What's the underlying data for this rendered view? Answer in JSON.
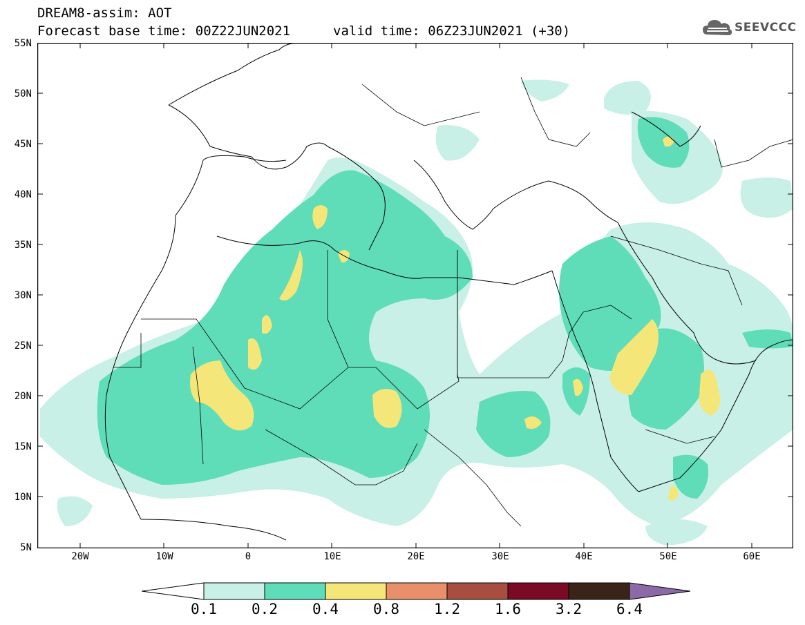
{
  "header": {
    "line1": "DREAM8-assim: AOT",
    "line2": "Forecast base time: 00Z22JUN2021",
    "line2b": "valid time: 06Z23JUN2021 (+30)",
    "logo_text": "SEEVCCC",
    "logo_icon": "cloud-icon"
  },
  "axes": {
    "y_labels": [
      "55N",
      "50N",
      "45N",
      "40N",
      "35N",
      "30N",
      "25N",
      "20N",
      "15N",
      "10N",
      "5N"
    ],
    "x_labels": [
      "20W",
      "10W",
      "0",
      "10E",
      "20E",
      "30E",
      "40E",
      "50E",
      "60E"
    ],
    "lon_range": [
      -25,
      65
    ],
    "lat_range": [
      5,
      55
    ]
  },
  "colorbar": {
    "levels": [
      "0.1",
      "0.2",
      "0.4",
      "0.8",
      "1.2",
      "1.6",
      "3.2",
      "6.4"
    ],
    "colors": [
      "#ffffff",
      "#c8f0e6",
      "#5fdcb8",
      "#f5e67a",
      "#e8906a",
      "#a84e40",
      "#7a0a26",
      "#3a2418",
      "#8c6aa8"
    ]
  }
}
